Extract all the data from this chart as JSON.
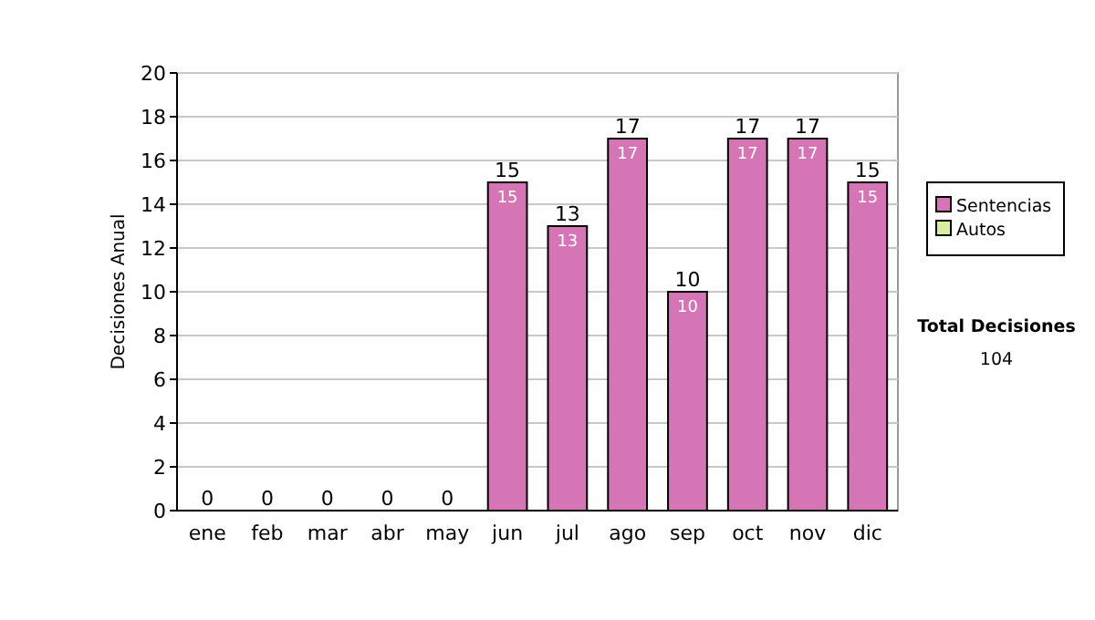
{
  "chart_data": {
    "type": "bar",
    "stacked": true,
    "ylabel": "Decisiones Anual",
    "categories": [
      "ene",
      "feb",
      "mar",
      "abr",
      "may",
      "jun",
      "jul",
      "ago",
      "sep",
      "oct",
      "nov",
      "dic"
    ],
    "series": [
      {
        "name": "Sentencias",
        "color": "#d575b5",
        "values": [
          0,
          0,
          0,
          0,
          0,
          15,
          13,
          17,
          10,
          17,
          17,
          15
        ],
        "value_labels": [
          null,
          null,
          null,
          null,
          null,
          "15",
          "13",
          "17",
          "10",
          "17",
          "17",
          "15"
        ]
      },
      {
        "name": "Autos",
        "color": "#d9eea0",
        "values": [
          0,
          0,
          0,
          0,
          0,
          0,
          0,
          0,
          0,
          0,
          0,
          0
        ]
      }
    ],
    "totals": [
      "0",
      "0",
      "0",
      "0",
      "0",
      "15",
      "13",
      "17",
      "10",
      "17",
      "17",
      "15"
    ],
    "ylim": [
      0,
      20
    ],
    "yticks": [
      0,
      2,
      4,
      6,
      8,
      10,
      12,
      14,
      16,
      18,
      20
    ],
    "grid": "y",
    "legend": "right",
    "annotations": [
      "Total Decisiones",
      "104"
    ]
  }
}
